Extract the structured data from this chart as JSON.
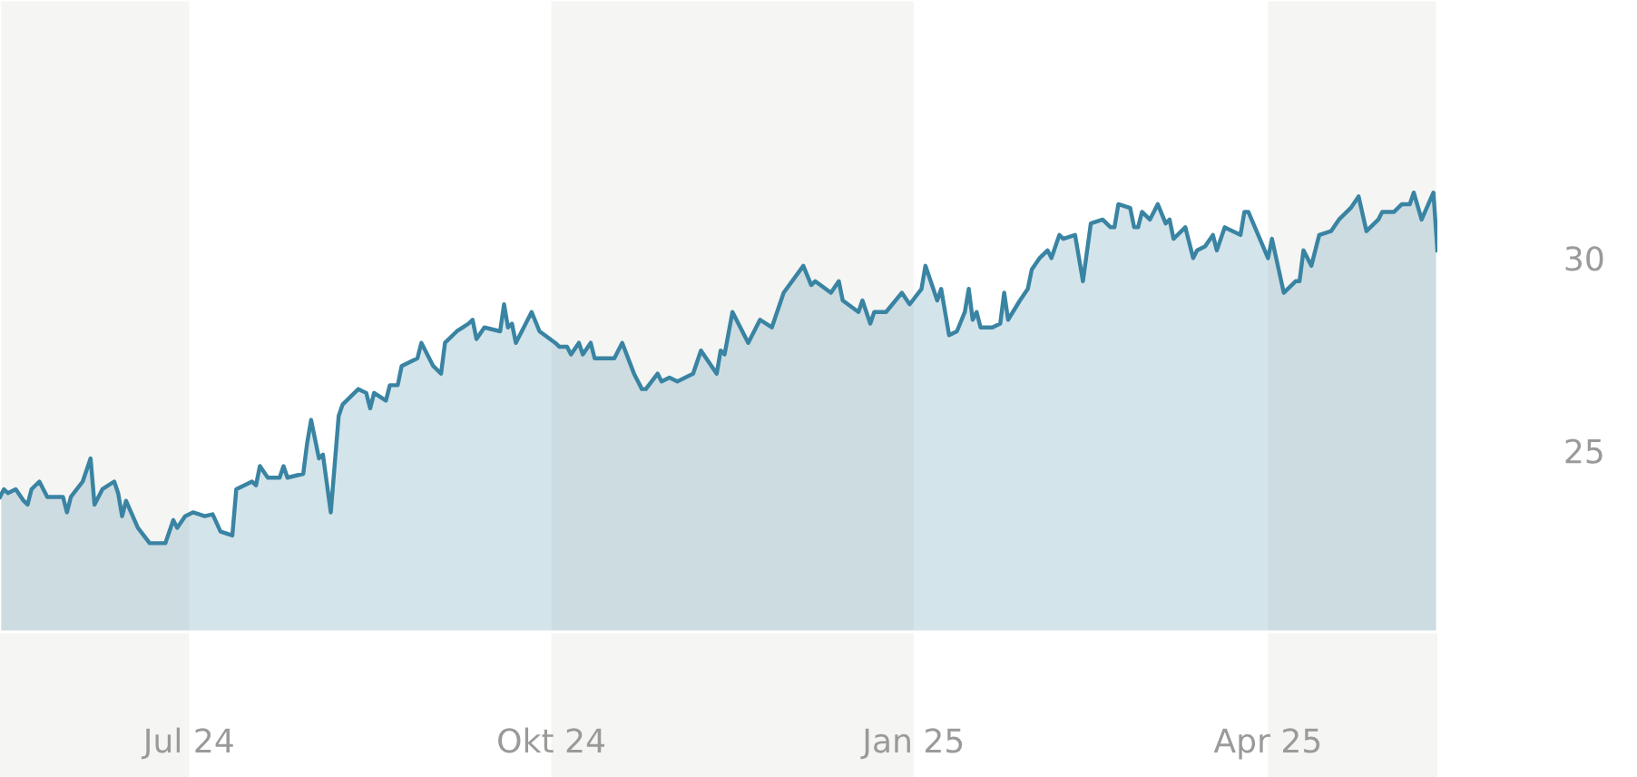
{
  "chart_data": {
    "type": "area",
    "x": [
      "2024-05-14",
      "2024-05-15",
      "2024-05-16",
      "2024-05-18",
      "2024-05-20",
      "2024-05-21",
      "2024-05-22",
      "2024-05-24",
      "2024-05-26",
      "2024-05-30",
      "2024-05-31",
      "2024-06-01",
      "2024-06-04",
      "2024-06-06",
      "2024-06-07",
      "2024-06-09",
      "2024-06-12",
      "2024-06-13",
      "2024-06-14",
      "2024-06-15",
      "2024-06-18",
      "2024-06-21",
      "2024-06-25",
      "2024-06-27",
      "2024-06-28",
      "2024-06-30",
      "2024-07-02",
      "2024-07-05",
      "2024-07-07",
      "2024-07-09",
      "2024-07-12",
      "2024-07-13",
      "2024-07-17",
      "2024-07-18",
      "2024-07-19",
      "2024-07-21",
      "2024-07-24",
      "2024-07-25",
      "2024-07-26",
      "2024-07-30",
      "2024-07-31",
      "2024-08-01",
      "2024-08-03",
      "2024-08-04",
      "2024-08-06",
      "2024-08-08",
      "2024-08-09",
      "2024-08-10",
      "2024-08-13",
      "2024-08-15",
      "2024-08-16",
      "2024-08-17",
      "2024-08-20",
      "2024-08-21",
      "2024-08-23",
      "2024-08-24",
      "2024-08-28",
      "2024-08-29",
      "2024-09-01",
      "2024-09-03",
      "2024-09-04",
      "2024-09-07",
      "2024-09-10",
      "2024-09-11",
      "2024-09-12",
      "2024-09-14",
      "2024-09-18",
      "2024-09-19",
      "2024-09-20",
      "2024-09-21",
      "2024-09-22",
      "2024-09-25",
      "2024-09-26",
      "2024-09-28",
      "2024-10-02",
      "2024-10-03",
      "2024-10-05",
      "2024-10-06",
      "2024-10-08",
      "2024-10-09",
      "2024-10-11",
      "2024-10-12",
      "2024-10-17",
      "2024-10-19",
      "2024-10-22",
      "2024-10-24",
      "2024-10-25",
      "2024-10-28",
      "2024-10-29",
      "2024-10-31",
      "2024-11-02",
      "2024-11-06",
      "2024-11-08",
      "2024-11-12",
      "2024-11-13",
      "2024-11-14",
      "2024-11-16",
      "2024-11-20",
      "2024-11-21",
      "2024-11-23",
      "2024-11-26",
      "2024-11-27",
      "2024-11-29",
      "2024-12-04",
      "2024-12-06",
      "2024-12-07",
      "2024-12-11",
      "2024-12-13",
      "2024-12-14",
      "2024-12-18",
      "2024-12-19",
      "2024-12-21",
      "2024-12-22",
      "2024-12-25",
      "2024-12-29",
      "2024-12-31",
      "2025-01-03",
      "2025-01-04",
      "2025-01-07",
      "2025-01-08",
      "2025-01-10",
      "2025-01-12",
      "2025-01-14",
      "2025-01-15",
      "2025-01-16",
      "2025-01-17",
      "2025-01-18",
      "2025-01-21",
      "2025-01-23",
      "2025-01-24",
      "2025-01-25",
      "2025-01-28",
      "2025-01-30",
      "2025-01-31",
      "2025-02-02",
      "2025-02-04",
      "2025-02-05",
      "2025-02-07",
      "2025-02-08",
      "2025-02-11",
      "2025-02-13",
      "2025-02-15",
      "2025-02-18",
      "2025-02-20",
      "2025-02-21",
      "2025-02-22",
      "2025-02-25",
      "2025-02-26",
      "2025-02-27",
      "2025-02-28",
      "2025-03-02",
      "2025-03-04",
      "2025-03-06",
      "2025-03-07",
      "2025-03-08",
      "2025-03-11",
      "2025-03-13",
      "2025-03-14",
      "2025-03-16",
      "2025-03-18",
      "2025-03-19",
      "2025-03-21",
      "2025-03-25",
      "2025-03-26",
      "2025-03-27",
      "2025-04-01",
      "2025-04-02",
      "2025-04-05",
      "2025-04-08",
      "2025-04-09",
      "2025-04-10",
      "2025-04-12",
      "2025-04-14",
      "2025-04-17",
      "2025-04-19",
      "2025-04-22",
      "2025-04-24",
      "2025-04-26",
      "2025-04-29",
      "2025-04-30",
      "2025-05-03",
      "2025-05-05",
      "2025-05-07",
      "2025-05-08",
      "2025-05-10",
      "2025-05-13",
      "2025-05-14"
    ],
    "series": [
      {
        "color": "#3a84a3",
        "values": [
          23.8,
          24.0,
          23.9,
          24.0,
          23.7,
          23.6,
          24.0,
          24.2,
          23.8,
          23.8,
          23.4,
          23.8,
          24.2,
          24.8,
          23.6,
          24.0,
          24.2,
          23.9,
          23.3,
          23.7,
          23.0,
          22.6,
          22.6,
          23.2,
          23.0,
          23.3,
          23.4,
          23.3,
          23.35,
          22.9,
          22.8,
          24.0,
          24.2,
          24.1,
          24.6,
          24.3,
          24.3,
          24.6,
          24.3,
          24.4,
          25.2,
          25.8,
          24.8,
          24.9,
          23.4,
          25.9,
          26.2,
          26.3,
          26.6,
          26.5,
          26.1,
          26.5,
          26.3,
          26.7,
          26.7,
          27.2,
          27.4,
          27.8,
          27.2,
          27.0,
          27.8,
          28.1,
          28.3,
          28.4,
          27.9,
          28.2,
          28.1,
          28.8,
          28.2,
          28.3,
          27.8,
          28.4,
          28.6,
          28.1,
          27.8,
          27.7,
          27.7,
          27.5,
          27.8,
          27.5,
          27.8,
          27.4,
          27.4,
          27.8,
          27.0,
          26.6,
          26.6,
          27.0,
          26.8,
          26.9,
          26.8,
          27.0,
          27.6,
          27.0,
          27.6,
          27.5,
          28.6,
          27.8,
          28.0,
          28.4,
          28.2,
          28.5,
          29.1,
          29.8,
          29.3,
          29.4,
          29.1,
          29.4,
          28.9,
          28.6,
          28.9,
          28.3,
          28.6,
          28.6,
          29.1,
          28.8,
          29.2,
          29.8,
          28.9,
          29.2,
          28.0,
          28.1,
          28.6,
          29.2,
          28.4,
          28.6,
          28.2,
          28.2,
          28.3,
          29.1,
          28.4,
          28.9,
          29.2,
          29.7,
          30.0,
          30.2,
          30.0,
          30.6,
          30.5,
          30.6,
          29.4,
          30.9,
          31.0,
          30.8,
          30.8,
          31.4,
          31.3,
          30.8,
          30.8,
          31.2,
          31.0,
          31.4,
          30.9,
          31.0,
          30.5,
          30.8,
          30.0,
          30.2,
          30.3,
          30.6,
          30.2,
          30.8,
          30.6,
          31.2,
          31.2,
          30.0,
          30.5,
          29.1,
          29.4,
          29.4,
          30.2,
          29.8,
          30.6,
          30.7,
          31.0,
          31.3,
          31.6,
          30.7,
          31.0,
          31.2,
          31.2,
          31.4,
          31.4,
          31.7,
          31.0,
          31.7,
          30.2
        ]
      }
    ],
    "xlim": [
      "2024-05-14",
      "2025-05-14"
    ],
    "xticks": [
      {
        "value": "2024-07-01",
        "label": "Jul 24"
      },
      {
        "value": "2024-10-01",
        "label": "Okt 24"
      },
      {
        "value": "2025-01-01",
        "label": "Jan 25"
      },
      {
        "value": "2025-04-01",
        "label": "Apr 25"
      }
    ],
    "ylim": [
      20.3,
      36.7
    ],
    "yticks": [
      25,
      30
    ],
    "bands": [
      {
        "axis": "x",
        "from": "2024-05-14",
        "to": "2024-07-01",
        "color": "#f5f5f3"
      },
      {
        "axis": "x",
        "from": "2024-10-01",
        "to": "2025-01-01",
        "color": "#f5f5f3"
      },
      {
        "axis": "x",
        "from": "2025-04-01",
        "to": "2025-05-14",
        "color": "#f5f5f3"
      }
    ],
    "grid": false,
    "legend": false
  }
}
